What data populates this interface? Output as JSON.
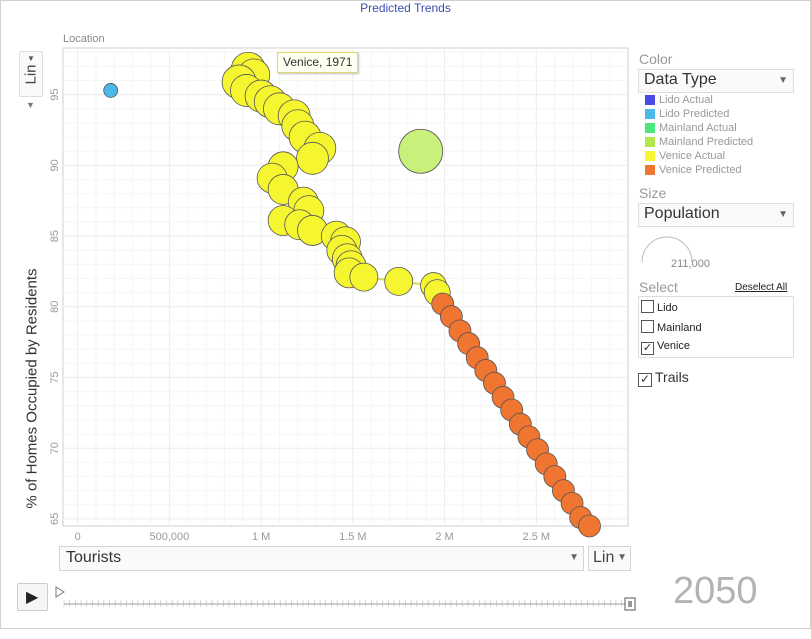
{
  "title": "Predicted Trends",
  "location_label": "Location",
  "y_scale": "Lin",
  "x_scale": "Lin",
  "x_variable": "Tourists",
  "y_axis_label": "% of Homes Occupied by Residents",
  "tooltip": "Venice, 1971",
  "year": "2050",
  "panel": {
    "color_heading": "Color",
    "color_dropdown": "Data Type",
    "legend": [
      {
        "label": "Lido Actual",
        "color": "#4a4ae8"
      },
      {
        "label": "Lido Predicted",
        "color": "#4ab8e8"
      },
      {
        "label": "Mainland Actual",
        "color": "#4ae87a"
      },
      {
        "label": "Mainland Predicted",
        "color": "#b2e84a"
      },
      {
        "label": "Venice Actual",
        "color": "#f5f530"
      },
      {
        "label": "Venice Predicted",
        "color": "#f07530"
      }
    ],
    "size_heading": "Size",
    "size_dropdown": "Population",
    "size_value": "211,000",
    "select_heading": "Select",
    "deselect_all": "Deselect All",
    "select_items": [
      {
        "label": "Lido",
        "checked": false
      },
      {
        "label": "Mainland",
        "checked": false
      },
      {
        "label": "Venice",
        "checked": true
      }
    ],
    "trails_label": "Trails",
    "trails_checked": true
  },
  "chart_data": {
    "type": "scatter",
    "xlabel": "Tourists",
    "ylabel": "% of Homes Occupied by Residents",
    "xlim": [
      -80000,
      3000000
    ],
    "ylim": [
      64.5,
      98.3
    ],
    "x_ticks": [
      0,
      500000,
      1000000,
      1500000,
      2000000,
      2500000
    ],
    "x_tick_labels": [
      "0",
      "500,000",
      "1 M",
      "1.5 M",
      "2 M",
      "2.5 M"
    ],
    "y_ticks": [
      65,
      70,
      75,
      80,
      85,
      90,
      95
    ],
    "y_tick_labels": [
      "65",
      "70",
      "75",
      "80",
      "85",
      "90",
      "95"
    ],
    "series": [
      {
        "name": "Lido Predicted",
        "color": "#4ab8e8",
        "points": [
          {
            "x": 180000,
            "y": 95.3,
            "r": 7
          }
        ]
      },
      {
        "name": "Mainland Predicted",
        "color": "#c8f07a",
        "points": [
          {
            "x": 1870000,
            "y": 91.0,
            "r": 22
          }
        ]
      },
      {
        "name": "Venice Actual",
        "color": "#f5f530",
        "points": [
          {
            "x": 930000,
            "y": 96.8,
            "r": 17
          },
          {
            "x": 960000,
            "y": 96.4,
            "r": 16
          },
          {
            "x": 880000,
            "y": 95.9,
            "r": 17
          },
          {
            "x": 920000,
            "y": 95.3,
            "r": 16
          },
          {
            "x": 1000000,
            "y": 94.9,
            "r": 16
          },
          {
            "x": 1050000,
            "y": 94.5,
            "r": 16
          },
          {
            "x": 1100000,
            "y": 94.0,
            "r": 16
          },
          {
            "x": 1180000,
            "y": 93.5,
            "r": 16
          },
          {
            "x": 1200000,
            "y": 92.8,
            "r": 16
          },
          {
            "x": 1240000,
            "y": 92.0,
            "r": 16
          },
          {
            "x": 1320000,
            "y": 91.2,
            "r": 16
          },
          {
            "x": 1280000,
            "y": 90.5,
            "r": 16
          },
          {
            "x": 1120000,
            "y": 89.9,
            "r": 15
          },
          {
            "x": 1060000,
            "y": 89.1,
            "r": 15
          },
          {
            "x": 1120000,
            "y": 88.3,
            "r": 15
          },
          {
            "x": 1230000,
            "y": 87.4,
            "r": 15
          },
          {
            "x": 1260000,
            "y": 86.8,
            "r": 15
          },
          {
            "x": 1120000,
            "y": 86.1,
            "r": 15
          },
          {
            "x": 1210000,
            "y": 85.8,
            "r": 15
          },
          {
            "x": 1280000,
            "y": 85.4,
            "r": 15
          },
          {
            "x": 1410000,
            "y": 85.0,
            "r": 15
          },
          {
            "x": 1460000,
            "y": 84.6,
            "r": 15
          },
          {
            "x": 1440000,
            "y": 84.0,
            "r": 15
          },
          {
            "x": 1470000,
            "y": 83.4,
            "r": 15
          },
          {
            "x": 1490000,
            "y": 82.9,
            "r": 15
          },
          {
            "x": 1480000,
            "y": 82.4,
            "r": 15
          },
          {
            "x": 1560000,
            "y": 82.1,
            "r": 14
          },
          {
            "x": 1750000,
            "y": 81.8,
            "r": 14
          },
          {
            "x": 1940000,
            "y": 81.5,
            "r": 13
          },
          {
            "x": 1960000,
            "y": 81.0,
            "r": 13
          }
        ]
      },
      {
        "name": "Venice Predicted",
        "color": "#f07530",
        "points": [
          {
            "x": 1990000,
            "y": 80.2,
            "r": 11
          },
          {
            "x": 2037000,
            "y": 79.3,
            "r": 11
          },
          {
            "x": 2084000,
            "y": 78.3,
            "r": 11
          },
          {
            "x": 2131000,
            "y": 77.4,
            "r": 11
          },
          {
            "x": 2178000,
            "y": 76.4,
            "r": 11
          },
          {
            "x": 2225000,
            "y": 75.5,
            "r": 11
          },
          {
            "x": 2272000,
            "y": 74.6,
            "r": 11
          },
          {
            "x": 2319000,
            "y": 73.6,
            "r": 11
          },
          {
            "x": 2366000,
            "y": 72.7,
            "r": 11
          },
          {
            "x": 2413000,
            "y": 71.7,
            "r": 11
          },
          {
            "x": 2460000,
            "y": 70.8,
            "r": 11
          },
          {
            "x": 2507000,
            "y": 69.9,
            "r": 11
          },
          {
            "x": 2554000,
            "y": 68.9,
            "r": 11
          },
          {
            "x": 2601000,
            "y": 68.0,
            "r": 11
          },
          {
            "x": 2648000,
            "y": 67.0,
            "r": 11
          },
          {
            "x": 2695000,
            "y": 66.1,
            "r": 11
          },
          {
            "x": 2742000,
            "y": 65.1,
            "r": 11
          },
          {
            "x": 2790000,
            "y": 64.5,
            "r": 11
          }
        ]
      }
    ],
    "grid": true
  }
}
